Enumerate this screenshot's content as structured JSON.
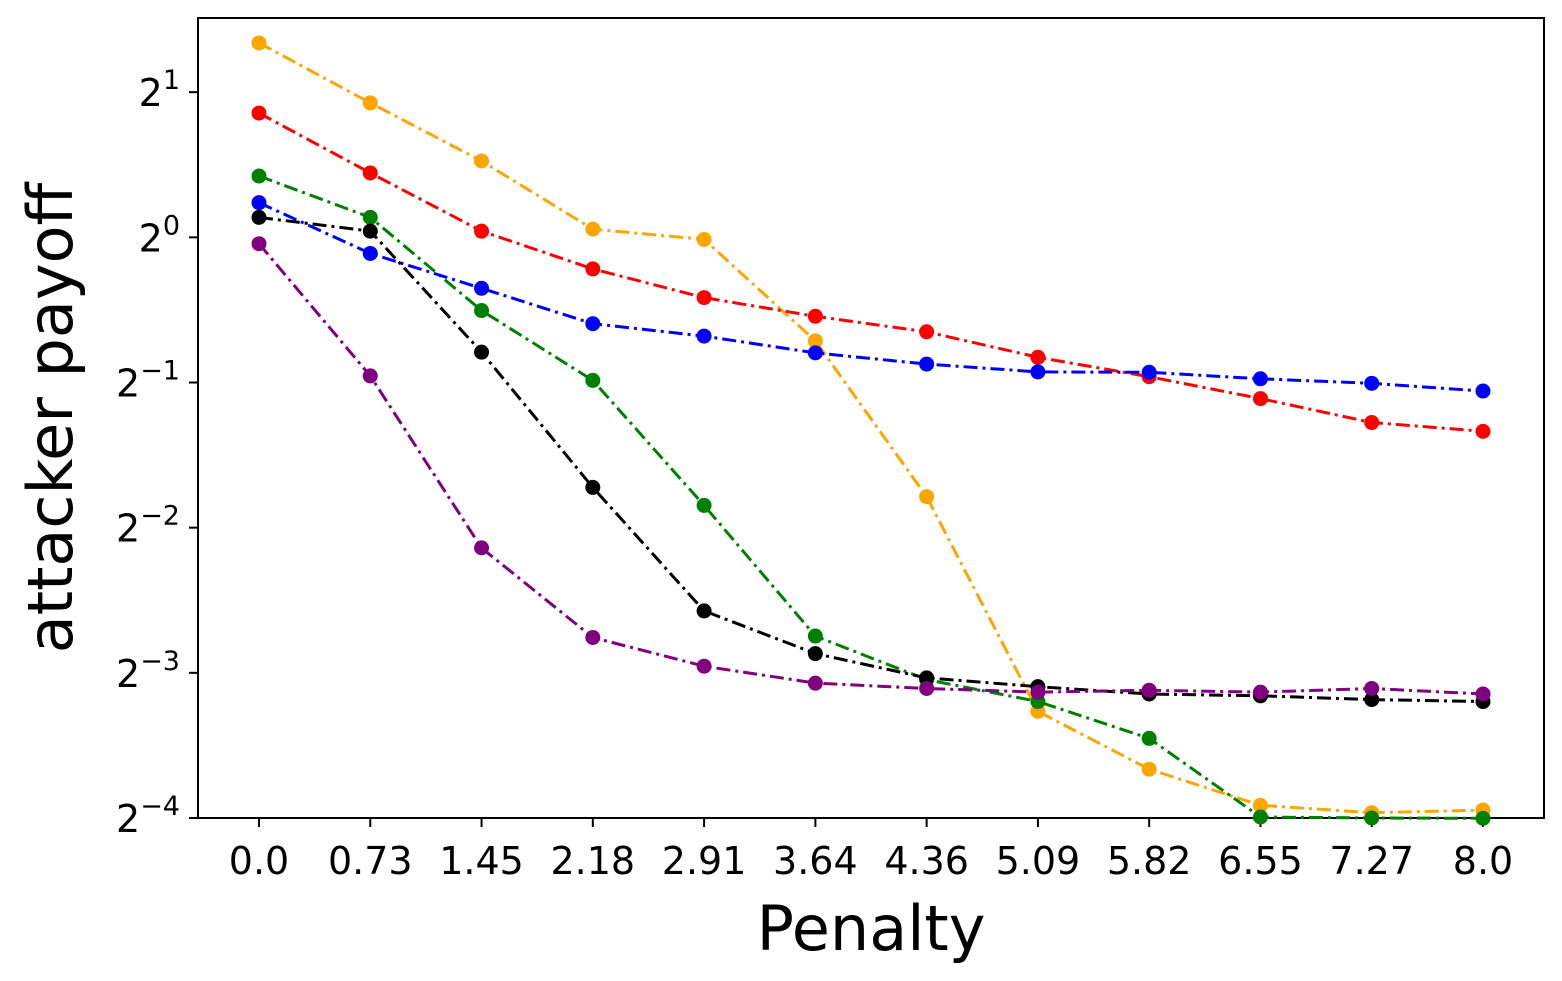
{
  "chart_data": {
    "type": "line",
    "title": "",
    "xlabel": "Penalty",
    "ylabel": "attacker payoff",
    "x_tick_labels": [
      "0.0",
      "0.73",
      "1.45",
      "2.18",
      "2.91",
      "3.64",
      "4.36",
      "5.09",
      "5.82",
      "6.55",
      "7.27",
      "8.0"
    ],
    "y_scale": "log2",
    "y_ticks": [
      {
        "value": 2,
        "base": "2",
        "exp": "1"
      },
      {
        "value": 1,
        "base": "2",
        "exp": "0"
      },
      {
        "value": 0.5,
        "base": "2",
        "exp": "−1"
      },
      {
        "value": 0.25,
        "base": "2",
        "exp": "−2"
      },
      {
        "value": 0.125,
        "base": "2",
        "exp": "−3"
      },
      {
        "value": 0.0625,
        "base": "2",
        "exp": "−4"
      }
    ],
    "ylim": [
      0.0625,
      2.85
    ],
    "grid": false,
    "line_style": "dash-dot",
    "series": [
      {
        "color": "#ffa500",
        "values": [
          2.53,
          1.9,
          1.44,
          1.04,
          0.99,
          0.61,
          0.29,
          0.104,
          0.0789,
          0.0664,
          0.0641,
          0.0649
        ]
      },
      {
        "color": "#ff0000",
        "values": [
          1.81,
          1.36,
          1.03,
          0.86,
          0.75,
          0.686,
          0.637,
          0.564,
          0.514,
          0.463,
          0.413,
          0.396
        ]
      },
      {
        "color": "#008000",
        "values": [
          1.34,
          1.1,
          0.705,
          0.505,
          0.278,
          0.149,
          0.121,
          0.109,
          0.0914,
          0.0628,
          0.0625,
          0.0624
        ]
      },
      {
        "color": "#0000ff",
        "values": [
          1.18,
          0.926,
          0.784,
          0.662,
          0.624,
          0.576,
          0.546,
          0.526,
          0.525,
          0.509,
          0.498,
          0.48
        ]
      },
      {
        "color": "#000000",
        "values": [
          1.1,
          1.03,
          0.578,
          0.303,
          0.168,
          0.137,
          0.122,
          0.117,
          0.113,
          0.112,
          0.11,
          0.109
        ]
      },
      {
        "color": "#800080",
        "values": [
          0.97,
          0.516,
          0.227,
          0.148,
          0.129,
          0.119,
          0.116,
          0.114,
          0.115,
          0.114,
          0.116,
          0.113
        ]
      }
    ]
  }
}
